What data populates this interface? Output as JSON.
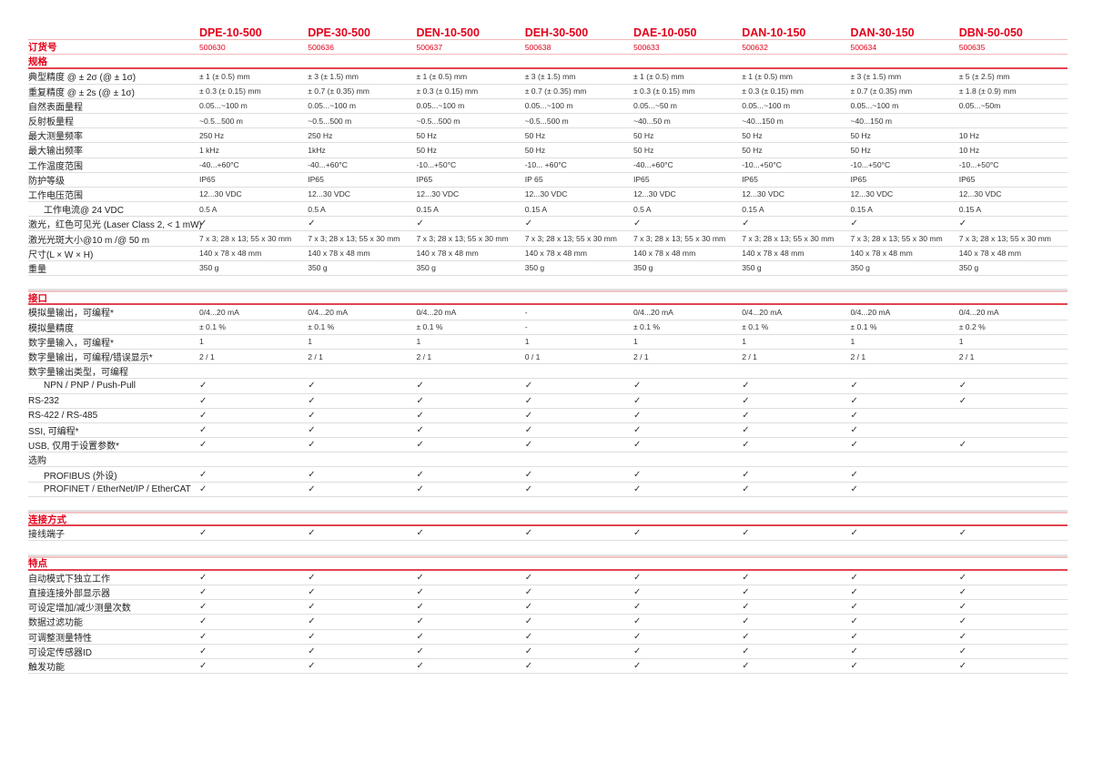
{
  "header": {
    "models": [
      "DPE-10-500",
      "DPE-30-500",
      "DEN-10-500",
      "DEH-30-500",
      "DAE-10-050",
      "DAN-10-150",
      "DAN-30-150",
      "DBN-50-050"
    ],
    "order_label": "订货号",
    "order_numbers": [
      "500630",
      "500636",
      "500637",
      "500638",
      "500633",
      "500632",
      "500634",
      "500635"
    ]
  },
  "colors": {
    "accent": "#e2001a",
    "section_line": "#e2434f",
    "row_line": "#dedede"
  },
  "check_icon": "✓",
  "sections": [
    {
      "title": "规格",
      "rows": [
        {
          "label": "典型精度 @ ± 2σ (@ ± 1σ)",
          "values": [
            "± 1 (± 0.5) mm",
            "± 3 (± 1.5) mm",
            "± 1 (± 0.5) mm",
            "± 3 (± 1.5) mm",
            "± 1 (± 0.5) mm",
            "± 1 (± 0.5) mm",
            "± 3 (± 1.5) mm",
            "± 5 (± 2.5) mm"
          ]
        },
        {
          "label": "重复精度 @ ± 2s (@ ± 1σ)",
          "values": [
            "± 0.3 (± 0.15) mm",
            "± 0.7 (± 0.35) mm",
            "± 0.3 (± 0.15) mm",
            "± 0.7 (± 0.35) mm",
            "± 0.3 (± 0.15) mm",
            "± 0.3 (± 0.15) mm",
            "± 0.7 (± 0.35) mm",
            "± 1.8 (± 0.9) mm"
          ]
        },
        {
          "label": "自然表面量程",
          "values": [
            "0.05...~100 m",
            "0.05...~100 m",
            "0.05...~100 m",
            "0.05...~100 m",
            "0.05...~50 m",
            "0.05...~100 m",
            "0.05...~100 m",
            "0.05...~50m"
          ]
        },
        {
          "label": "反射板量程",
          "values": [
            " ~0.5...500 m",
            " ~0.5...500 m",
            " ~0.5...500 m",
            " ~0.5...500 m",
            "~40...50 m",
            "~40...150 m",
            "~40...150 m",
            ""
          ]
        },
        {
          "label": "最大测量频率",
          "values": [
            "250 Hz",
            "250 Hz",
            "50 Hz",
            "50 Hz",
            "50 Hz",
            "50 Hz",
            "50 Hz",
            "10 Hz"
          ]
        },
        {
          "label": "最大输出频率",
          "values": [
            "1 kHz",
            "1kHz",
            "50 Hz",
            "50 Hz",
            "50 Hz",
            "50 Hz",
            "50 Hz",
            "10 Hz"
          ]
        },
        {
          "label": "工作温度范围",
          "values": [
            "-40...+60°C",
            "-40...+60°C",
            "-10...+50°C",
            "-10... +60°C",
            "-40...+60°C",
            "-10...+50°C",
            "-10...+50°C",
            "-10...+50°C"
          ]
        },
        {
          "label": "防护等级",
          "values": [
            "IP65",
            "IP65",
            "IP65",
            "IP 65",
            "IP65",
            "IP65",
            "IP65",
            "IP65"
          ]
        },
        {
          "label": "工作电压范围",
          "values": [
            "12...30 VDC",
            "12...30 VDC",
            "12...30 VDC",
            "12...30 VDC",
            "12...30 VDC",
            "12...30 VDC",
            "12...30 VDC",
            "12...30 VDC"
          ]
        },
        {
          "label": "工作电流@ 24 VDC",
          "indent": true,
          "values": [
            "0.5 A",
            "0.5 A",
            "0.15 A",
            "0.15 A",
            "0.5 A",
            "0.15 A",
            "0.15 A",
            "0.15 A"
          ]
        },
        {
          "label": "激光，红色可见光 (Laser Class 2, < 1 mW)",
          "values": [
            "✓",
            "✓",
            "✓",
            "✓",
            "✓",
            "✓",
            "✓",
            "✓"
          ]
        },
        {
          "label": "激光光斑大小@10 m /@ 50 m",
          "values": [
            "7 x 3; 28 x 13; 55 x 30 mm",
            "7 x 3; 28 x 13; 55 x 30 mm",
            "7 x 3; 28 x 13; 55 x 30 mm",
            "7 x 3; 28 x 13; 55 x 30 mm",
            "7 x 3; 28 x 13; 55 x 30 mm",
            "7 x 3; 28 x 13; 55 x 30 mm",
            "7 x 3; 28 x 13; 55 x 30 mm",
            "7 x 3; 28 x 13; 55 x 30 mm"
          ]
        },
        {
          "label": "尺寸(L × W × H)",
          "values": [
            "140 x 78 x 48 mm",
            "140 x 78 x 48 mm",
            "140 x 78 x 48 mm",
            "140 x 78 x 48 mm",
            "140 x 78 x 48 mm",
            "140 x 78 x 48 mm",
            "140 x 78 x 48 mm",
            "140 x 78 x 48 mm"
          ]
        },
        {
          "label": "重量",
          "values": [
            "350 g",
            "350 g",
            "350 g",
            "350 g",
            "350 g",
            "350 g",
            "350 g",
            "350 g"
          ]
        }
      ]
    },
    {
      "title": "接口",
      "rows": [
        {
          "label": "模拟量输出，可编程*",
          "values": [
            "0/4...20 mA",
            "0/4...20 mA",
            "0/4...20 mA",
            "-",
            "0/4...20 mA",
            "0/4...20 mA",
            "0/4...20 mA",
            "0/4...20 mA"
          ]
        },
        {
          "label": "模拟量精度",
          "values": [
            "± 0.1 %",
            "± 0.1 %",
            "± 0.1 %",
            "-",
            "± 0.1 %",
            "± 0.1 %",
            "± 0.1 %",
            "± 0.2 %"
          ]
        },
        {
          "label": "数字量输入，可编程*",
          "values": [
            "1",
            "1",
            "1",
            "1",
            "1",
            "1",
            "1",
            "1"
          ]
        },
        {
          "label": "数字量输出，可编程/错误显示*",
          "values": [
            "2 / 1",
            "2 / 1",
            "2 / 1",
            "0 / 1",
            "2 / 1",
            "2 / 1",
            "2 / 1",
            "2 / 1"
          ]
        },
        {
          "label": "数字量输出类型，可编程",
          "values": [
            "",
            "",
            "",
            "",
            "",
            "",
            "",
            ""
          ]
        },
        {
          "label": "NPN / PNP / Push-Pull",
          "indent": true,
          "values": [
            "✓",
            "✓",
            "✓",
            "✓",
            "✓",
            "✓",
            "✓",
            "✓"
          ]
        },
        {
          "label": "RS-232",
          "values": [
            "✓",
            "✓",
            "✓",
            "✓",
            "✓",
            "✓",
            "✓",
            "✓"
          ]
        },
        {
          "label": "RS-422 / RS-485",
          "values": [
            "✓",
            "✓",
            "✓",
            "✓",
            "✓",
            "✓",
            "✓",
            ""
          ]
        },
        {
          "label": "SSI, 可编程*",
          "values": [
            "✓",
            "✓",
            "✓",
            "✓",
            "✓",
            "✓",
            "✓",
            ""
          ]
        },
        {
          "label": "USB, 仅用于设置参数*",
          "values": [
            "✓",
            "✓",
            "✓",
            "✓",
            "✓",
            "✓",
            "✓",
            "✓"
          ]
        },
        {
          "label": "选购",
          "values": [
            "",
            "",
            "",
            "",
            "",
            "",
            "",
            ""
          ]
        },
        {
          "label": "PROFIBUS (外设)",
          "indent": true,
          "values": [
            "✓",
            "✓",
            "✓",
            "✓",
            "✓",
            "✓",
            "✓",
            ""
          ]
        },
        {
          "label": "PROFINET / EtherNet/IP / EtherCAT",
          "indent": true,
          "values": [
            "✓",
            "✓",
            "✓",
            "✓",
            "✓",
            "✓",
            "✓",
            ""
          ]
        }
      ]
    },
    {
      "title": "连接方式",
      "rows": [
        {
          "label": "接线端子",
          "values": [
            "✓",
            "✓",
            "✓",
            "✓",
            "✓",
            "✓",
            "✓",
            "✓"
          ]
        }
      ]
    },
    {
      "title": "特点",
      "rows": [
        {
          "label": "自动模式下独立工作",
          "values": [
            "✓",
            "✓",
            "✓",
            "✓",
            "✓",
            "✓",
            "✓",
            "✓"
          ]
        },
        {
          "label": "直接连接外部显示器",
          "values": [
            "✓",
            "✓",
            "✓",
            "✓",
            "✓",
            "✓",
            "✓",
            "✓"
          ]
        },
        {
          "label": "可设定增加/减少测量次数",
          "values": [
            "✓",
            "✓",
            "✓",
            "✓",
            "✓",
            "✓",
            "✓",
            "✓"
          ]
        },
        {
          "label": "数据过滤功能",
          "values": [
            "✓",
            "✓",
            "✓",
            "✓",
            "✓",
            "✓",
            "✓",
            "✓"
          ]
        },
        {
          "label": "可调整测量特性",
          "values": [
            "✓",
            "✓",
            "✓",
            "✓",
            "✓",
            "✓",
            "✓",
            "✓"
          ]
        },
        {
          "label": "可设定传感器ID",
          "values": [
            "✓",
            "✓",
            "✓",
            "✓",
            "✓",
            "✓",
            "✓",
            "✓"
          ]
        },
        {
          "label": "触发功能",
          "values": [
            "✓",
            "✓",
            "✓",
            "✓",
            "✓",
            "✓",
            "✓",
            "✓"
          ]
        }
      ]
    }
  ]
}
